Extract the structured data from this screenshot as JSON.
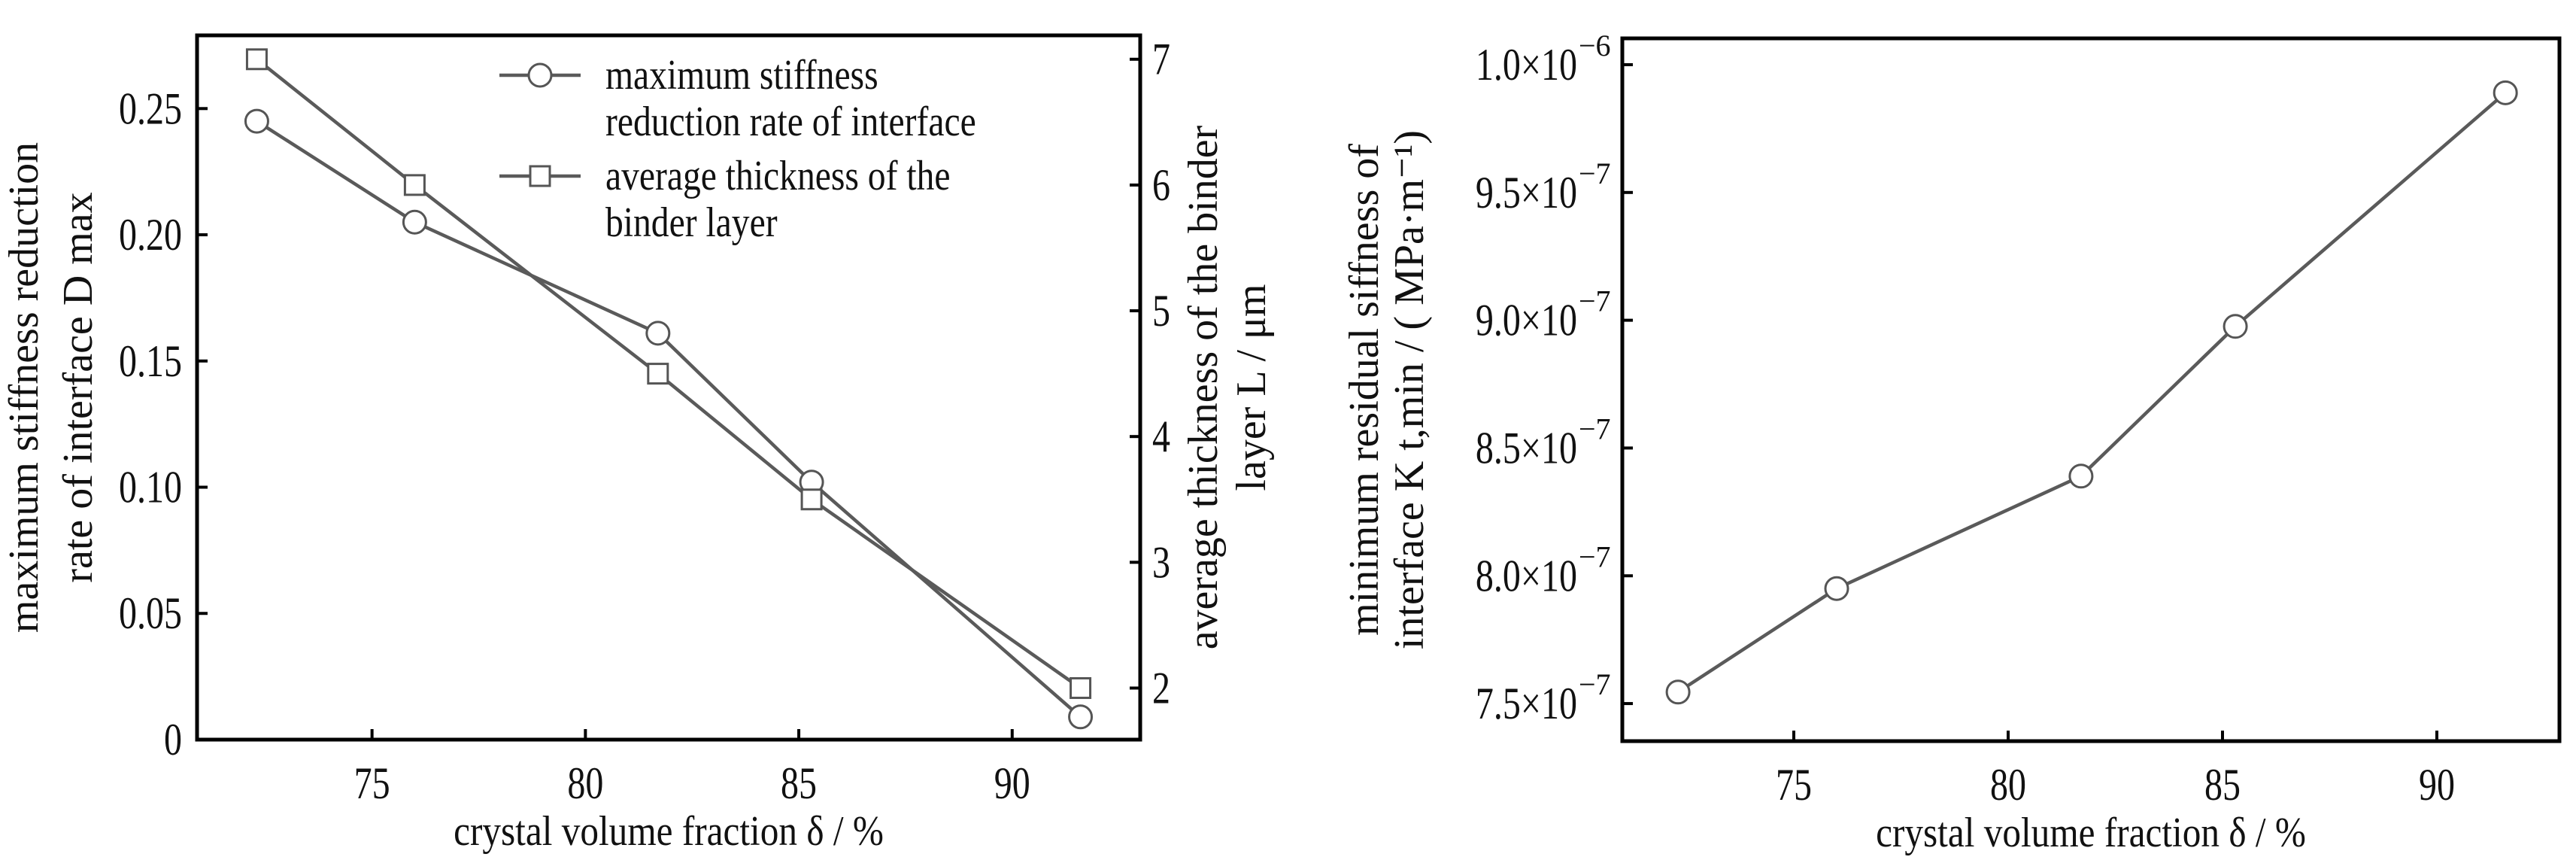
{
  "chart_data": [
    {
      "type": "line",
      "title": "",
      "xlabel": "crystal volume fraction δ / %",
      "ylabel_lines": [
        "maximum stiffness reduction",
        "rate of interface D max"
      ],
      "y2label_lines": [
        "average thickness of the binder",
        "layer L / μm"
      ],
      "xlim": [
        70.9,
        93.0
      ],
      "ylim": [
        0,
        0.279
      ],
      "y2lim": [
        1.59,
        7.19
      ],
      "xticks": [
        75,
        80,
        85,
        90
      ],
      "xtick_labels": [
        "75",
        "80",
        "85",
        "90"
      ],
      "yticks": [
        0,
        0.05,
        0.1,
        0.15,
        0.2,
        0.25
      ],
      "ytick_labels": [
        "0",
        "0.05",
        "0.10",
        "0.15",
        "0.20",
        "0.25"
      ],
      "y2ticks": [
        2,
        3,
        4,
        5,
        6,
        7
      ],
      "y2tick_labels": [
        "2",
        "3",
        "4",
        "5",
        "6",
        "7"
      ],
      "grid": false,
      "legend_position": "top-right",
      "x": [
        72.3,
        76.0,
        81.7,
        85.3,
        91.6
      ],
      "series": [
        {
          "name": "maximum stiffness reduction rate of interface",
          "legend_lines": [
            "maximum stiffness",
            "reduction rate of interface"
          ],
          "axis": "left",
          "marker": "circle",
          "values": [
            0.245,
            0.205,
            0.161,
            0.102,
            0.009
          ]
        },
        {
          "name": "average thickness of the binder layer",
          "legend_lines": [
            "average thickness of the",
            "binder layer"
          ],
          "axis": "right",
          "marker": "square",
          "values": [
            7.0,
            6.0,
            4.5,
            3.5,
            2.0
          ]
        }
      ],
      "line_color": "#5a5a5a"
    },
    {
      "type": "line",
      "title": "",
      "xlabel": "crystal volume fraction δ / %",
      "ylabel_lines": [
        "minimum residual siffness of",
        "interface K t,min / ( MPa·m⁻¹)"
      ],
      "xlim": [
        71.0,
        92.86
      ],
      "ylim": [
        7.353e-07,
        1.0103e-06
      ],
      "xticks": [
        75,
        80,
        85,
        90
      ],
      "xtick_labels": [
        "75",
        "80",
        "85",
        "90"
      ],
      "yticks": [
        7.5e-07,
        8e-07,
        8.5e-07,
        9e-07,
        9.5e-07,
        1e-06
      ],
      "ytick_labels": [
        [
          "7.5×10",
          "−7"
        ],
        [
          "8.0×10",
          "−7"
        ],
        [
          "8.5×10",
          "−7"
        ],
        [
          "9.0×10",
          "−7"
        ],
        [
          "9.5×10",
          "−7"
        ],
        [
          "1.0×10",
          "−6"
        ]
      ],
      "grid": false,
      "x": [
        72.3,
        76.0,
        81.7,
        85.3,
        91.6
      ],
      "series": [
        {
          "name": "minimum residual stiffness",
          "marker": "circle",
          "values": [
            7.545e-07,
            7.95e-07,
            8.39e-07,
            8.976e-07,
            9.89e-07
          ]
        }
      ],
      "line_color": "#5a5a5a"
    }
  ]
}
